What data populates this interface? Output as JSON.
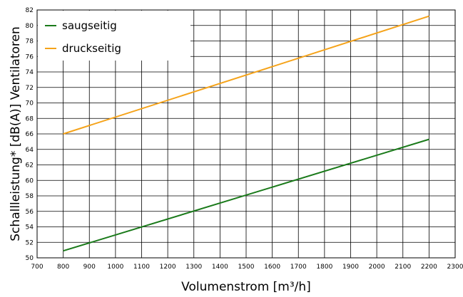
{
  "chart_data": {
    "type": "line",
    "xlabel": "Volumenstrom [m³/h]",
    "ylabel": "Schallleistung* [dB(A)] Ventilatoren",
    "xlim": [
      700,
      2300
    ],
    "ylim": [
      50,
      82
    ],
    "x_ticks": [
      700,
      800,
      900,
      1000,
      1100,
      1200,
      1300,
      1400,
      1500,
      1600,
      1700,
      1800,
      1900,
      2000,
      2100,
      2200,
      2300
    ],
    "y_ticks": [
      50,
      52,
      54,
      56,
      58,
      60,
      62,
      64,
      66,
      68,
      70,
      72,
      74,
      76,
      78,
      80,
      82
    ],
    "grid": true,
    "legend_position": "top-left",
    "series": [
      {
        "name": "saugseitig",
        "color": "#1a7a1a",
        "x": [
          800,
          2200
        ],
        "y": [
          50.9,
          65.3
        ]
      },
      {
        "name": "druckseitig",
        "color": "#f5a31a",
        "x": [
          800,
          2200
        ],
        "y": [
          66.0,
          81.2
        ]
      }
    ]
  }
}
